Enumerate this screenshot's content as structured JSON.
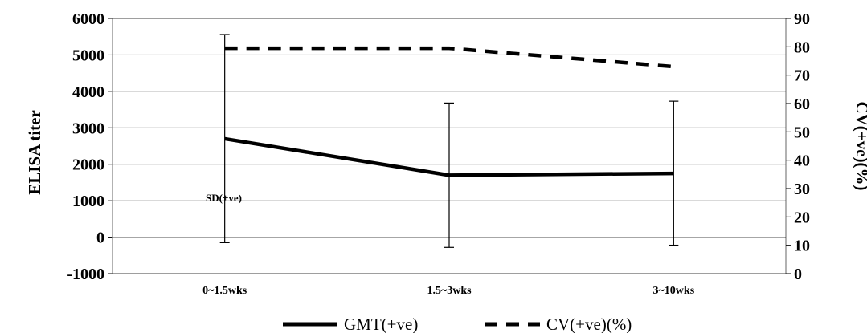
{
  "chart_data": {
    "type": "line",
    "categories": [
      "0~1.5wks",
      "1.5~3wks",
      "3~10wks"
    ],
    "ylabel": "ELISA titer",
    "y2label": "CV(+ve)(%)",
    "ylim": [
      -1000,
      6000
    ],
    "y2lim": [
      0,
      90
    ],
    "yticks": [
      "6000",
      "5000",
      "4000",
      "3000",
      "2000",
      "1000",
      "0",
      "-1000"
    ],
    "y2ticks": [
      "90",
      "80",
      "70",
      "60",
      "50",
      "40",
      "30",
      "20",
      "10",
      "0"
    ],
    "grid": true,
    "legend_position": "bottom",
    "annotation": "SD(+ve)",
    "series": [
      {
        "name": "GMT(+ve)",
        "axis": "left",
        "style": "solid",
        "color": "#000000",
        "values": [
          2700,
          1700,
          1750
        ],
        "error_low": [
          -150,
          -280,
          -220
        ],
        "error_high": [
          5560,
          3680,
          3730
        ]
      },
      {
        "name": "CV(+ve)(%)",
        "axis": "right",
        "style": "dashed",
        "color": "#000000",
        "values": [
          79.5,
          79.5,
          73
        ]
      }
    ]
  }
}
